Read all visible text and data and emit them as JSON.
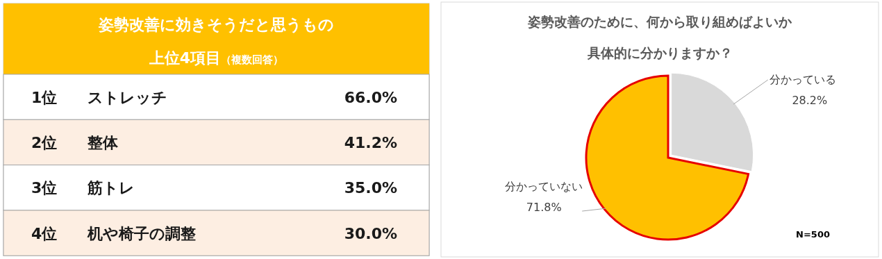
{
  "chart_data": [
    {
      "type": "other",
      "title": "姿勢改善に効きそうだと思うもの",
      "subtitle": "上位4項目",
      "annotations": [
        "（複数回答）",
        "1位　　ストレッチ",
        "66.0%",
        "2位　　整体",
        "41.2%",
        "3位　　筋トレ",
        "35.0%",
        "4位　　机や椅子の調整",
        "30.0%"
      ]
    },
    {
      "type": "pie",
      "title": "姿勢改善のために、何から取り組めばよいか",
      "subtitle": "具体的に分かりますか？",
      "categories": [
        "分かっている",
        "分かっていない"
      ],
      "values": [
        28.2,
        71.8
      ],
      "colors": [
        "#d9d9d9",
        "#ffc000"
      ],
      "value_labels": [
        "28.2%",
        "71.8%"
      ],
      "annotations": [
        "N=500"
      ]
    }
  ]
}
